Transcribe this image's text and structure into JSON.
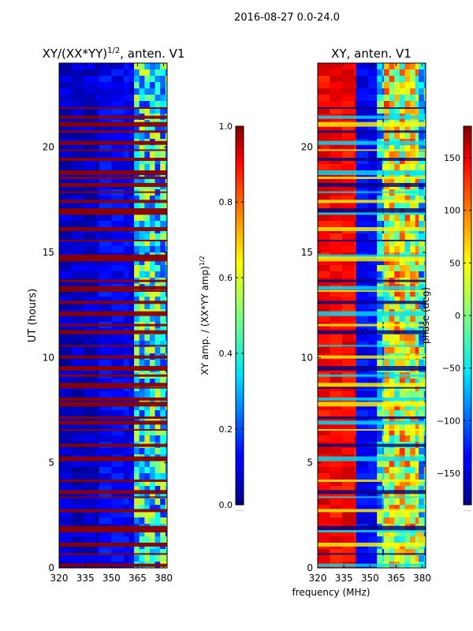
{
  "figure": {
    "suptitle": "2016-08-27 0.0-24.0",
    "shared_xlabel": "frequency (MHz)"
  },
  "chart_data": [
    {
      "type": "heatmap",
      "title": "XY/(XX*YY)",
      "title_superscript": "1/2",
      "title_suffix": ", anten. V1",
      "xlabel": "",
      "ylabel": "UT (hours)",
      "xlim": [
        320,
        382
      ],
      "ylim": [
        0,
        24
      ],
      "xticks": [
        320,
        335,
        350,
        365,
        380
      ],
      "yticks": [
        0,
        5,
        10,
        15,
        20
      ],
      "colorscale": "jet",
      "colorbar": {
        "label": "XY amp. / (XX*YY amp)",
        "label_superscript": "1/2",
        "range": [
          0.0,
          1.0
        ],
        "ticks": [
          "0.0",
          "0.2",
          "0.4",
          "0.6",
          "0.8",
          "1.0"
        ],
        "footnote": "......"
      },
      "bands": [
        {
          "fmin": 320,
          "fmax": 343,
          "level": 0.07
        },
        {
          "fmin": 343,
          "fmax": 360,
          "level": 0.12
        },
        {
          "fmin": 360,
          "fmax": 363,
          "level": 0.1
        },
        {
          "fmin": 363,
          "fmax": 382,
          "level": 0.38
        }
      ],
      "flagged_hours": [
        21.9,
        21.5,
        21.2,
        20.8,
        20.3,
        19.9,
        19.5,
        18.9,
        18.6,
        18.3,
        17.9,
        17.5,
        17.1,
        16.9,
        16.2,
        15.6,
        14.9,
        14.8,
        13.7,
        13.4,
        13.2,
        12.7,
        12.2,
        11.6,
        11.3,
        10.6,
        10.1,
        9.6,
        9.2,
        8.8,
        8.6,
        8.1,
        7.9,
        7.2,
        7.0,
        6.6,
        5.9,
        5.3,
        4.2,
        3.7,
        3.4,
        2.8,
        2.0,
        1.8,
        1.2,
        0.7,
        0.2
      ]
    },
    {
      "type": "heatmap",
      "title": "XY, anten. V1",
      "xlabel": "frequency (MHz)",
      "ylabel": "",
      "xlim": [
        320,
        382
      ],
      "ylim": [
        0,
        24
      ],
      "xticks": [
        320,
        335,
        350,
        365,
        380
      ],
      "yticks": [
        0,
        5,
        10,
        15,
        20
      ],
      "colorscale": "jet",
      "colorbar": {
        "label": "phase (deg)",
        "range": [
          -180,
          180
        ],
        "ticks": [
          "−150",
          "−100",
          "−50",
          "0",
          "50",
          "100",
          "150"
        ],
        "footnote": "......"
      },
      "bands": [
        {
          "fmin": 320,
          "fmax": 342,
          "level": 0.88
        },
        {
          "fmin": 342,
          "fmax": 354,
          "level": 0.12
        },
        {
          "fmin": 354,
          "fmax": 358,
          "level": 0.35
        },
        {
          "fmin": 358,
          "fmax": 378,
          "level": 0.6
        },
        {
          "fmin": 378,
          "fmax": 382,
          "level": 0.42
        }
      ],
      "flagged_hours": [
        21.9,
        21.5,
        21.2,
        20.8,
        20.3,
        19.9,
        19.5,
        18.9,
        18.6,
        18.3,
        17.9,
        17.5,
        17.1,
        16.9,
        16.2,
        15.6,
        14.9,
        14.8,
        13.7,
        13.4,
        13.2,
        12.7,
        12.2,
        11.6,
        11.3,
        10.6,
        10.1,
        9.6,
        9.2,
        8.8,
        8.6,
        8.1,
        7.9,
        7.2,
        7.0,
        6.6,
        5.9,
        5.3,
        4.2,
        3.7,
        3.4,
        2.8,
        2.0,
        1.8,
        1.2,
        0.7,
        0.2
      ]
    }
  ]
}
